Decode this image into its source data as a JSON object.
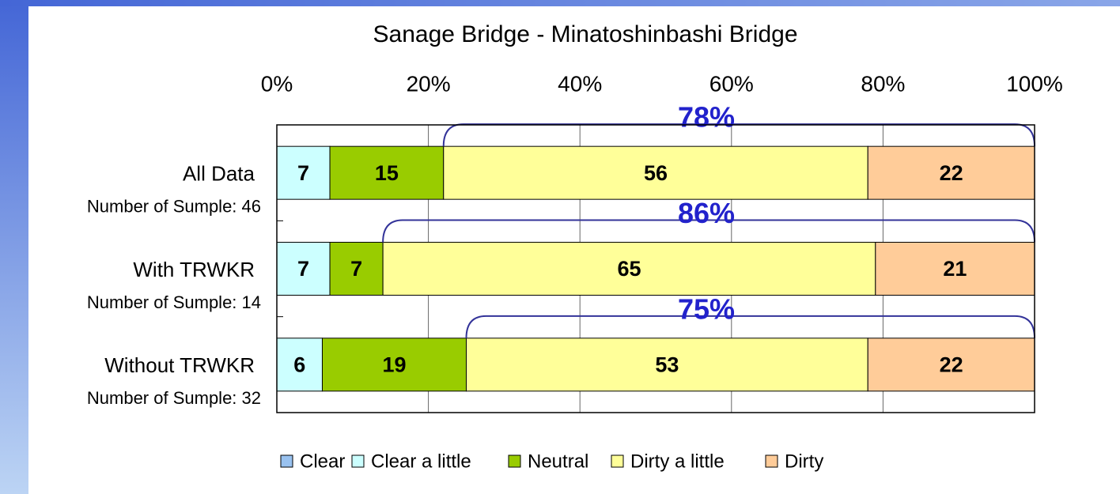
{
  "chart_data": {
    "type": "stacked_barh",
    "title": "Sanage Bridge - Minatoshinbashi Bridge",
    "categories": [
      "All Data",
      "With TRWKR",
      "Without TRWKR"
    ],
    "category_sublabels": [
      "Number of Sumple: 46",
      "Number of Sumple: 14",
      "Number of Sumple: 32"
    ],
    "series": [
      {
        "name": "Clear",
        "color": "#99c2f0",
        "values": [
          0,
          0,
          0
        ]
      },
      {
        "name": "Clear a little",
        "color": "#ccffff",
        "values": [
          7,
          7,
          6
        ]
      },
      {
        "name": "Neutral",
        "color": "#99cc00",
        "values": [
          15,
          7,
          19
        ]
      },
      {
        "name": "Dirty a little",
        "color": "#ffff99",
        "values": [
          56,
          65,
          53
        ]
      },
      {
        "name": "Dirty",
        "color": "#ffcc99",
        "values": [
          22,
          21,
          22
        ]
      }
    ],
    "annotations": [
      {
        "value": 78,
        "label": "78%"
      },
      {
        "value": 86,
        "label": "86%"
      },
      {
        "value": 75,
        "label": "75%"
      }
    ],
    "xlim": [
      0,
      100
    ],
    "xticks": [
      {
        "value": 0,
        "label": "0%"
      },
      {
        "value": 20,
        "label": "20%"
      },
      {
        "value": 40,
        "label": "40%"
      },
      {
        "value": 60,
        "label": "60%"
      },
      {
        "value": 80,
        "label": "80%"
      },
      {
        "value": 100,
        "label": "100%"
      }
    ],
    "grid": true,
    "legend": "bottom"
  }
}
